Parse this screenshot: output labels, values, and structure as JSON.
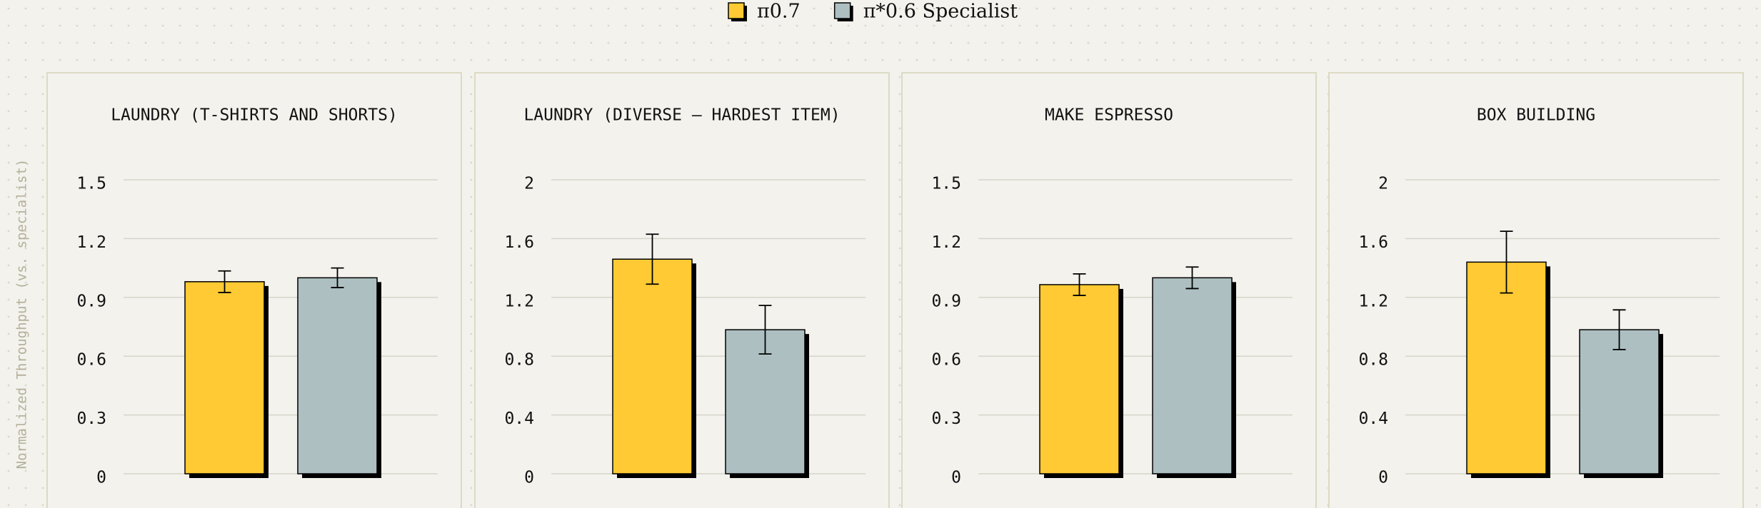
{
  "y_label": "Normalized Throughput (vs. specialist)",
  "series": [
    {
      "name": "π0.7",
      "color": "#ffca33"
    },
    {
      "name": "π*0.6 Specialist",
      "color": "#adbfc1"
    }
  ],
  "chart_data": [
    {
      "type": "bar",
      "title": "LAUNDRY (T-SHIRTS AND SHORTS)",
      "values": [
        0.98,
        1.0
      ],
      "errors": [
        0.055,
        0.05
      ],
      "ylim": [
        0,
        1.5
      ],
      "yticks": [
        0,
        0.3,
        0.6,
        0.9,
        1.2,
        1.5
      ],
      "grid": true
    },
    {
      "type": "bar",
      "title": "LAUNDRY (DIVERSE – HARDEST ITEM)",
      "values": [
        1.46,
        0.98
      ],
      "errors": [
        0.17,
        0.165
      ],
      "ylim": [
        0,
        2
      ],
      "yticks": [
        0,
        0.4,
        0.8,
        1.2,
        1.6,
        2
      ],
      "grid": true
    },
    {
      "type": "bar",
      "title": "MAKE ESPRESSO",
      "values": [
        0.965,
        1.0
      ],
      "errors": [
        0.055,
        0.055
      ],
      "ylim": [
        0,
        1.5
      ],
      "yticks": [
        0,
        0.3,
        0.6,
        0.9,
        1.2,
        1.5
      ],
      "grid": true
    },
    {
      "type": "bar",
      "title": "BOX BUILDING",
      "values": [
        1.44,
        0.98
      ],
      "errors": [
        0.21,
        0.135
      ],
      "ylim": [
        0,
        2
      ],
      "yticks": [
        0,
        0.4,
        0.8,
        1.2,
        1.6,
        2
      ],
      "grid": true
    }
  ]
}
